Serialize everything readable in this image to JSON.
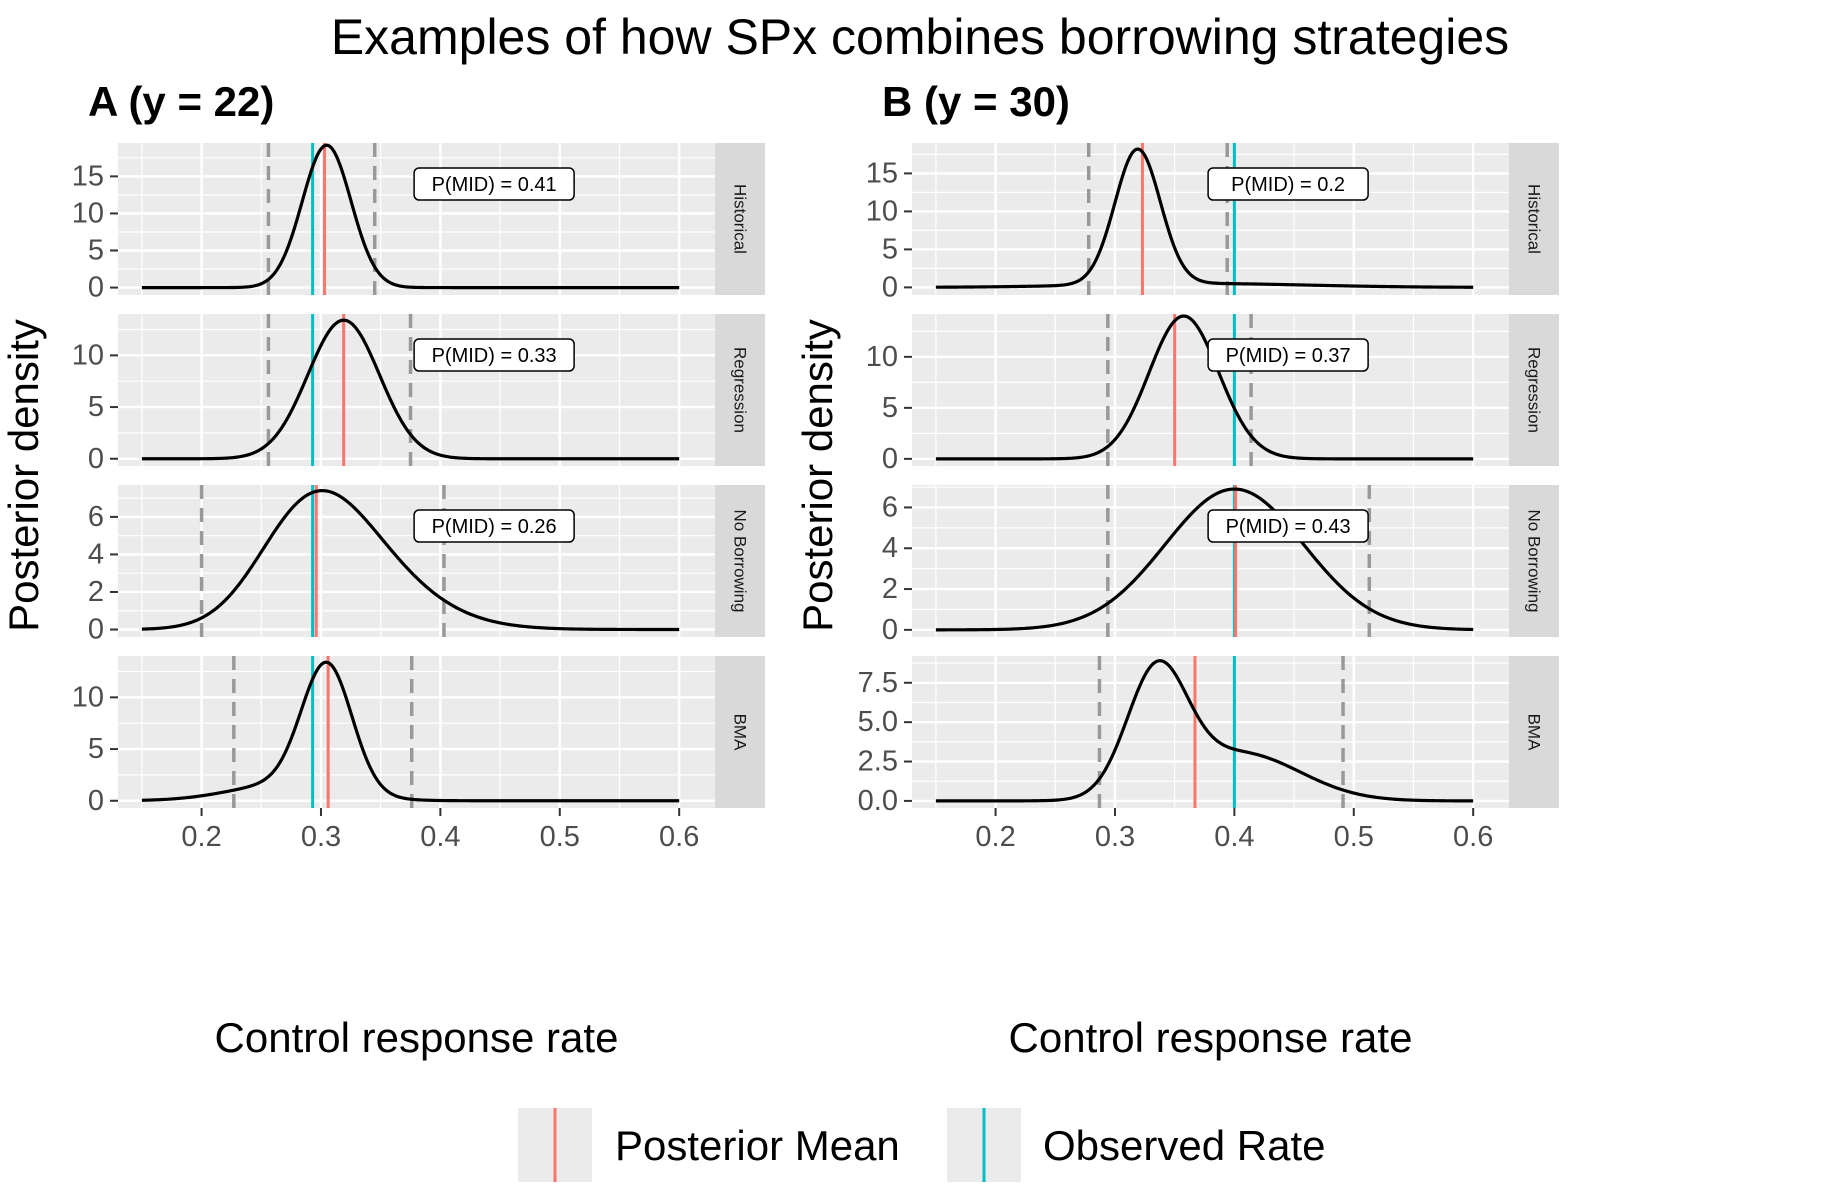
{
  "chart_data": {
    "type": "line",
    "title": "Examples of how SPx combines borrowing strategies",
    "xlabel": "Control response rate",
    "ylabel": "Posterior density",
    "xlim": [
      0.13,
      0.63
    ],
    "x_ticks": [
      0.2,
      0.3,
      0.4,
      0.5,
      0.6
    ],
    "x_tick_labels": [
      "0.2",
      "0.3",
      "0.4",
      "0.5",
      "0.6"
    ],
    "colors": {
      "posterior_mean": "#F8766D",
      "observed_rate": "#00BFC4",
      "interval": "#999999",
      "density": "#000000",
      "panel_bg": "#EBEBEB",
      "strip_bg": "#D9D9D9",
      "grid": "#FFFFFF"
    },
    "legend": {
      "position": "bottom",
      "items": [
        {
          "label": "Posterior Mean",
          "key": "posterior_mean"
        },
        {
          "label": "Observed Rate",
          "key": "observed_rate"
        }
      ]
    },
    "columns": [
      {
        "title": "A (y = 22)",
        "rows": [
          {
            "strip": "Historical",
            "ylim": [
              -1,
              19.5
            ],
            "y_ticks": [
              0,
              5,
              10,
              15
            ],
            "y_tick_labels": [
              "0",
              "5",
              "10",
              "15"
            ],
            "posterior_mean": 0.303,
            "observed_rate": 0.293,
            "interval": [
              0.256,
              0.345
            ],
            "annotation": "P(MID) = 0.41",
            "density": {
              "type": "skewnormal",
              "loc": 0.3,
              "scale": 0.021,
              "alpha": 0.3,
              "peak": 19.2
            }
          },
          {
            "strip": "Regression",
            "ylim": [
              -0.7,
              14.0
            ],
            "y_ticks": [
              0,
              5,
              10
            ],
            "y_tick_labels": [
              "0",
              "5",
              "10"
            ],
            "posterior_mean": 0.319,
            "observed_rate": 0.293,
            "interval": [
              0.256,
              0.375
            ],
            "annotation": "P(MID) = 0.33",
            "density": {
              "type": "skewnormal",
              "loc": 0.319,
              "scale": 0.03,
              "alpha": 0,
              "peak": 13.4
            }
          },
          {
            "strip": "No Borrowing",
            "ylim": [
              -0.4,
              7.7
            ],
            "y_ticks": [
              0,
              2,
              4,
              6
            ],
            "y_tick_labels": [
              "0",
              "2",
              "4",
              "6"
            ],
            "posterior_mean": 0.296,
            "observed_rate": 0.293,
            "interval": [
              0.2,
              0.403
            ],
            "annotation": "P(MID) = 0.26",
            "density": {
              "type": "skewnormal",
              "loc": 0.262,
              "scale": 0.072,
              "alpha": 1.6,
              "peak": 7.4
            }
          },
          {
            "strip": "BMA",
            "ylim": [
              -0.7,
              14.0
            ],
            "y_ticks": [
              0,
              5,
              10
            ],
            "y_tick_labels": [
              "0",
              "5",
              "10"
            ],
            "posterior_mean": 0.306,
            "observed_rate": 0.293,
            "interval": [
              0.227,
              0.376
            ],
            "annotation": null,
            "density": {
              "type": "mixture",
              "peak": 13.4,
              "components": [
                {
                  "w": 0.78,
                  "mu": 0.305,
                  "sigma": 0.021
                },
                {
                  "w": 0.22,
                  "mu": 0.27,
                  "sigma": 0.045
                }
              ]
            }
          }
        ]
      },
      {
        "title": "B (y = 30)",
        "rows": [
          {
            "strip": "Historical",
            "ylim": [
              -1,
              19.0
            ],
            "y_ticks": [
              0,
              5,
              10,
              15
            ],
            "y_tick_labels": [
              "0",
              "5",
              "10",
              "15"
            ],
            "posterior_mean": 0.323,
            "observed_rate": 0.4,
            "interval": [
              0.278,
              0.394
            ],
            "annotation": "P(MID) = 0.2",
            "density": {
              "type": "mixture",
              "peak": 18.2,
              "components": [
                {
                  "w": 0.88,
                  "mu": 0.319,
                  "sigma": 0.019
                },
                {
                  "w": 0.12,
                  "mu": 0.37,
                  "sigma": 0.09
                }
              ]
            }
          },
          {
            "strip": "Regression",
            "ylim": [
              -0.7,
              14.2
            ],
            "y_ticks": [
              0,
              5,
              10
            ],
            "y_tick_labels": [
              "0",
              "5",
              "10"
            ],
            "posterior_mean": 0.35,
            "observed_rate": 0.4,
            "interval": [
              0.294,
              0.414
            ],
            "annotation": "P(MID) = 0.37",
            "density": {
              "type": "skewnormal",
              "loc": 0.345,
              "scale": 0.032,
              "alpha": 0.6,
              "peak": 14.0
            }
          },
          {
            "strip": "No Borrowing",
            "ylim": [
              -0.35,
              7.1
            ],
            "y_ticks": [
              0,
              2,
              4,
              6
            ],
            "y_tick_labels": [
              "0",
              "2",
              "4",
              "6"
            ],
            "posterior_mean": 0.401,
            "observed_rate": 0.4,
            "interval": [
              0.294,
              0.513
            ],
            "annotation": "P(MID) = 0.43",
            "density": {
              "type": "skewnormal",
              "loc": 0.4,
              "scale": 0.058,
              "alpha": 0,
              "peak": 6.9
            }
          },
          {
            "strip": "BMA",
            "ylim": [
              -0.45,
              9.2
            ],
            "y_ticks": [
              0,
              2.5,
              5,
              7.5
            ],
            "y_tick_labels": [
              "0.0",
              "2.5",
              "5.0",
              "7.5"
            ],
            "posterior_mean": 0.367,
            "observed_rate": 0.4,
            "interval": [
              0.287,
              0.491
            ],
            "annotation": null,
            "density": {
              "type": "mixture",
              "peak": 8.9,
              "components": [
                {
                  "w": 0.56,
                  "mu": 0.335,
                  "sigma": 0.025
                },
                {
                  "w": 0.44,
                  "mu": 0.405,
                  "sigma": 0.05
                }
              ]
            }
          }
        ]
      }
    ]
  }
}
